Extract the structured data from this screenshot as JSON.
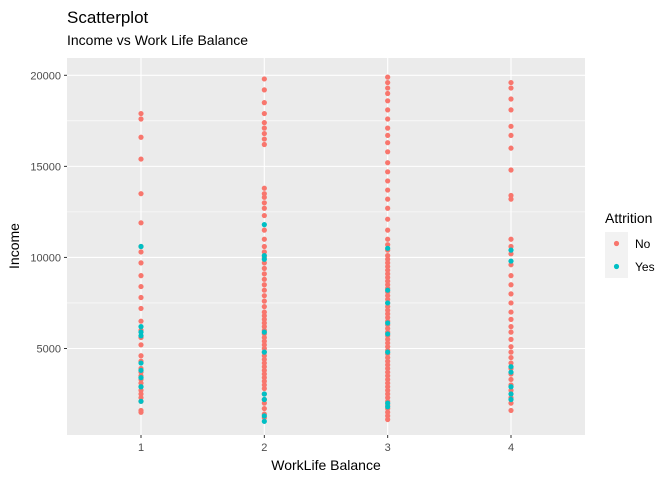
{
  "chart_data": {
    "type": "scatter",
    "title": "Scatterplot",
    "subtitle": "Income vs Work Life Balance",
    "xlabel": "WorkLife Balance",
    "ylabel": "Income",
    "x_ticks": [
      1,
      2,
      3,
      4
    ],
    "y_ticks": [
      5000,
      10000,
      15000,
      20000
    ],
    "xlim": [
      0.4,
      4.6
    ],
    "ylim": [
      250,
      20950
    ],
    "grid": true,
    "legend": {
      "title": "Attrition",
      "placement": "right"
    },
    "series": [
      {
        "name": "No",
        "color": "#F8766D",
        "points": [
          [
            1,
            1500
          ],
          [
            1,
            1600
          ],
          [
            1,
            2100
          ],
          [
            1,
            2300
          ],
          [
            1,
            2500
          ],
          [
            1,
            2700
          ],
          [
            1,
            2900
          ],
          [
            1,
            3100
          ],
          [
            1,
            3300
          ],
          [
            1,
            3500
          ],
          [
            1,
            3700
          ],
          [
            1,
            3900
          ],
          [
            1,
            4300
          ],
          [
            1,
            4600
          ],
          [
            1,
            5200
          ],
          [
            1,
            5600
          ],
          [
            1,
            6000
          ],
          [
            1,
            6500
          ],
          [
            1,
            7200
          ],
          [
            1,
            7800
          ],
          [
            1,
            8400
          ],
          [
            1,
            9000
          ],
          [
            1,
            9700
          ],
          [
            1,
            10300
          ],
          [
            1,
            10600
          ],
          [
            1,
            11900
          ],
          [
            1,
            13500
          ],
          [
            1,
            15400
          ],
          [
            1,
            16600
          ],
          [
            1,
            17600
          ],
          [
            1,
            17900
          ],
          [
            2,
            1200
          ],
          [
            2,
            1400
          ],
          [
            2,
            1700
          ],
          [
            2,
            2000
          ],
          [
            2,
            2200
          ],
          [
            2,
            2500
          ],
          [
            2,
            2800
          ],
          [
            2,
            3000
          ],
          [
            2,
            3200
          ],
          [
            2,
            3400
          ],
          [
            2,
            3600
          ],
          [
            2,
            3800
          ],
          [
            2,
            4000
          ],
          [
            2,
            4200
          ],
          [
            2,
            4400
          ],
          [
            2,
            4600
          ],
          [
            2,
            4800
          ],
          [
            2,
            5000
          ],
          [
            2,
            5200
          ],
          [
            2,
            5400
          ],
          [
            2,
            5600
          ],
          [
            2,
            5800
          ],
          [
            2,
            6000
          ],
          [
            2,
            6200
          ],
          [
            2,
            6400
          ],
          [
            2,
            6600
          ],
          [
            2,
            6800
          ],
          [
            2,
            7000
          ],
          [
            2,
            7300
          ],
          [
            2,
            7600
          ],
          [
            2,
            7900
          ],
          [
            2,
            8200
          ],
          [
            2,
            8500
          ],
          [
            2,
            8800
          ],
          [
            2,
            9100
          ],
          [
            2,
            9400
          ],
          [
            2,
            9700
          ],
          [
            2,
            10000
          ],
          [
            2,
            10300
          ],
          [
            2,
            10600
          ],
          [
            2,
            11000
          ],
          [
            2,
            11500
          ],
          [
            2,
            12300
          ],
          [
            2,
            12700
          ],
          [
            2,
            13000
          ],
          [
            2,
            13300
          ],
          [
            2,
            13500
          ],
          [
            2,
            13800
          ],
          [
            2,
            16200
          ],
          [
            2,
            16500
          ],
          [
            2,
            16800
          ],
          [
            2,
            17100
          ],
          [
            2,
            17400
          ],
          [
            2,
            17900
          ],
          [
            2,
            18500
          ],
          [
            2,
            19200
          ],
          [
            2,
            19800
          ],
          [
            3,
            1100
          ],
          [
            3,
            1300
          ],
          [
            3,
            1500
          ],
          [
            3,
            1700
          ],
          [
            3,
            1900
          ],
          [
            3,
            2100
          ],
          [
            3,
            2300
          ],
          [
            3,
            2500
          ],
          [
            3,
            2700
          ],
          [
            3,
            2900
          ],
          [
            3,
            3100
          ],
          [
            3,
            3300
          ],
          [
            3,
            3500
          ],
          [
            3,
            3700
          ],
          [
            3,
            3900
          ],
          [
            3,
            4100
          ],
          [
            3,
            4300
          ],
          [
            3,
            4500
          ],
          [
            3,
            4700
          ],
          [
            3,
            4900
          ],
          [
            3,
            5100
          ],
          [
            3,
            5300
          ],
          [
            3,
            5500
          ],
          [
            3,
            5700
          ],
          [
            3,
            5900
          ],
          [
            3,
            6100
          ],
          [
            3,
            6300
          ],
          [
            3,
            6500
          ],
          [
            3,
            6700
          ],
          [
            3,
            6900
          ],
          [
            3,
            7100
          ],
          [
            3,
            7300
          ],
          [
            3,
            7500
          ],
          [
            3,
            7700
          ],
          [
            3,
            7900
          ],
          [
            3,
            8100
          ],
          [
            3,
            8300
          ],
          [
            3,
            8500
          ],
          [
            3,
            8700
          ],
          [
            3,
            8900
          ],
          [
            3,
            9100
          ],
          [
            3,
            9300
          ],
          [
            3,
            9500
          ],
          [
            3,
            9700
          ],
          [
            3,
            9900
          ],
          [
            3,
            10100
          ],
          [
            3,
            10400
          ],
          [
            3,
            10700
          ],
          [
            3,
            11000
          ],
          [
            3,
            11500
          ],
          [
            3,
            12100
          ],
          [
            3,
            12700
          ],
          [
            3,
            13200
          ],
          [
            3,
            13700
          ],
          [
            3,
            14200
          ],
          [
            3,
            14700
          ],
          [
            3,
            15200
          ],
          [
            3,
            15800
          ],
          [
            3,
            16300
          ],
          [
            3,
            16700
          ],
          [
            3,
            17100
          ],
          [
            3,
            17600
          ],
          [
            3,
            18100
          ],
          [
            3,
            18600
          ],
          [
            3,
            19000
          ],
          [
            3,
            19300
          ],
          [
            3,
            19600
          ],
          [
            3,
            19900
          ],
          [
            4,
            1600
          ],
          [
            4,
            2000
          ],
          [
            4,
            2300
          ],
          [
            4,
            2700
          ],
          [
            4,
            3000
          ],
          [
            4,
            3300
          ],
          [
            4,
            3600
          ],
          [
            4,
            3900
          ],
          [
            4,
            4200
          ],
          [
            4,
            4500
          ],
          [
            4,
            4800
          ],
          [
            4,
            5100
          ],
          [
            4,
            5500
          ],
          [
            4,
            5900
          ],
          [
            4,
            6200
          ],
          [
            4,
            6600
          ],
          [
            4,
            7000
          ],
          [
            4,
            7500
          ],
          [
            4,
            8000
          ],
          [
            4,
            8500
          ],
          [
            4,
            9000
          ],
          [
            4,
            9600
          ],
          [
            4,
            10200
          ],
          [
            4,
            10600
          ],
          [
            4,
            11000
          ],
          [
            4,
            13200
          ],
          [
            4,
            13400
          ],
          [
            4,
            14800
          ],
          [
            4,
            16000
          ],
          [
            4,
            16700
          ],
          [
            4,
            17200
          ],
          [
            4,
            18100
          ],
          [
            4,
            18700
          ],
          [
            4,
            19300
          ],
          [
            4,
            19600
          ]
        ]
      },
      {
        "name": "Yes",
        "color": "#00BFC4",
        "points": [
          [
            1,
            2100
          ],
          [
            1,
            2900
          ],
          [
            1,
            3400
          ],
          [
            1,
            3800
          ],
          [
            1,
            4200
          ],
          [
            1,
            5700
          ],
          [
            1,
            5900
          ],
          [
            1,
            6200
          ],
          [
            1,
            10600
          ],
          [
            2,
            1000
          ],
          [
            2,
            1300
          ],
          [
            2,
            2200
          ],
          [
            2,
            2500
          ],
          [
            2,
            4800
          ],
          [
            2,
            5900
          ],
          [
            2,
            9900
          ],
          [
            2,
            10100
          ],
          [
            2,
            11800
          ],
          [
            3,
            1800
          ],
          [
            3,
            2000
          ],
          [
            3,
            4800
          ],
          [
            3,
            5800
          ],
          [
            3,
            6400
          ],
          [
            3,
            7500
          ],
          [
            3,
            8200
          ],
          [
            3,
            10500
          ],
          [
            4,
            2200
          ],
          [
            4,
            2500
          ],
          [
            4,
            2900
          ],
          [
            4,
            3700
          ],
          [
            4,
            4000
          ],
          [
            4,
            9800
          ],
          [
            4,
            10400
          ]
        ]
      }
    ]
  }
}
